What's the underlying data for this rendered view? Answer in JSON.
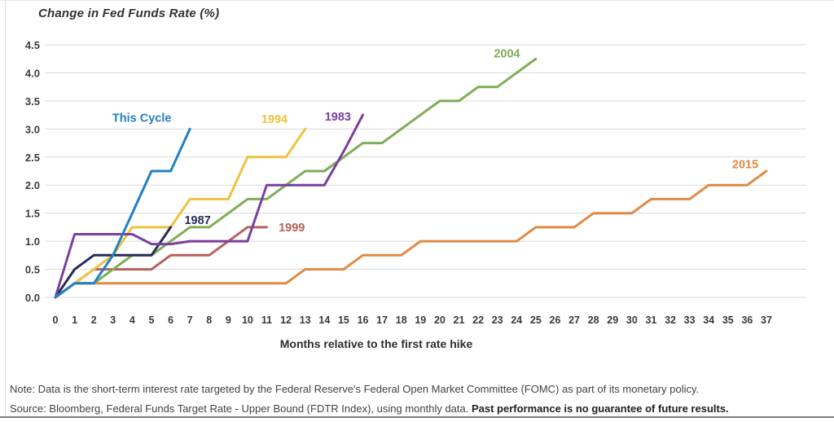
{
  "chart_data": {
    "type": "line",
    "title": "Change in Fed Funds Rate (%)",
    "xlabel": "Months relative to the first rate hike",
    "ylabel": "",
    "xlim": [
      0,
      37
    ],
    "ylim": [
      0,
      4.5
    ],
    "grid": "horizontal",
    "grid_color": "#d9d9d9",
    "axis_text_color": "#3d3d3d",
    "x_ticks": [
      0,
      1,
      2,
      3,
      4,
      5,
      6,
      7,
      8,
      9,
      10,
      11,
      12,
      13,
      14,
      15,
      16,
      17,
      18,
      19,
      20,
      21,
      22,
      23,
      24,
      25,
      26,
      27,
      28,
      29,
      30,
      31,
      32,
      33,
      34,
      35,
      36,
      37
    ],
    "y_ticks": [
      "4.5",
      "4.0",
      "3.5",
      "3.0",
      "2.5",
      "2.0",
      "1.5",
      "1.0",
      "0.5",
      "0.0"
    ],
    "series": [
      {
        "name": "1999",
        "color": "#b5625b",
        "label_pos": {
          "x": 12.3,
          "y": 1.25
        },
        "points": [
          [
            0,
            0
          ],
          [
            1,
            0.25
          ],
          [
            2,
            0.5
          ],
          [
            3,
            0.5
          ],
          [
            4,
            0.5
          ],
          [
            5,
            0.5
          ],
          [
            6,
            0.75
          ],
          [
            7,
            0.75
          ],
          [
            8,
            0.75
          ],
          [
            9,
            1.0
          ],
          [
            10,
            1.25
          ],
          [
            11,
            1.25
          ]
        ]
      },
      {
        "name": "2004",
        "color": "#7ead57",
        "label_pos": {
          "x": 23.5,
          "y": 4.35
        },
        "points": [
          [
            0,
            0
          ],
          [
            1,
            0.25
          ],
          [
            2,
            0.25
          ],
          [
            3,
            0.5
          ],
          [
            4,
            0.75
          ],
          [
            5,
            0.75
          ],
          [
            6,
            1.0
          ],
          [
            7,
            1.25
          ],
          [
            8,
            1.25
          ],
          [
            9,
            1.5
          ],
          [
            10,
            1.75
          ],
          [
            11,
            1.75
          ],
          [
            12,
            2.0
          ],
          [
            13,
            2.25
          ],
          [
            14,
            2.25
          ],
          [
            15,
            2.5
          ],
          [
            16,
            2.75
          ],
          [
            17,
            2.75
          ],
          [
            18,
            3.0
          ],
          [
            19,
            3.25
          ],
          [
            20,
            3.5
          ],
          [
            21,
            3.5
          ],
          [
            22,
            3.75
          ],
          [
            23,
            3.75
          ],
          [
            24,
            4.0
          ],
          [
            25,
            4.25
          ]
        ]
      },
      {
        "name": "1994",
        "color": "#eec33f",
        "label_pos": {
          "x": 11.4,
          "y": 3.18
        },
        "points": [
          [
            0,
            0
          ],
          [
            1,
            0.25
          ],
          [
            2,
            0.5
          ],
          [
            3,
            0.75
          ],
          [
            4,
            1.25
          ],
          [
            5,
            1.25
          ],
          [
            6,
            1.25
          ],
          [
            7,
            1.75
          ],
          [
            8,
            1.75
          ],
          [
            9,
            1.75
          ],
          [
            10,
            2.5
          ],
          [
            11,
            2.5
          ],
          [
            12,
            2.5
          ],
          [
            13,
            3.0
          ]
        ]
      },
      {
        "name": "1987",
        "color": "#262c57",
        "label_pos": {
          "x": 7.4,
          "y": 1.38
        },
        "points": [
          [
            0,
            0
          ],
          [
            1,
            0.5
          ],
          [
            2,
            0.75
          ],
          [
            3,
            0.75
          ],
          [
            4,
            0.75
          ],
          [
            5,
            0.75
          ],
          [
            6,
            1.25
          ]
        ]
      },
      {
        "name": "1983",
        "color": "#7b3f9d",
        "label_pos": {
          "x": 14.7,
          "y": 3.22
        },
        "points": [
          [
            0,
            0
          ],
          [
            1,
            1.125
          ],
          [
            2,
            1.125
          ],
          [
            3,
            1.125
          ],
          [
            4,
            1.125
          ],
          [
            5,
            0.95
          ],
          [
            6,
            0.95
          ],
          [
            7,
            1.0
          ],
          [
            8,
            1.0
          ],
          [
            9,
            1.0
          ],
          [
            10,
            1.0
          ],
          [
            11,
            2.0
          ],
          [
            12,
            2.0
          ],
          [
            13,
            2.0
          ],
          [
            14,
            2.0
          ],
          [
            15,
            2.6
          ],
          [
            16,
            3.25
          ]
        ]
      },
      {
        "name": "2015",
        "color": "#df8a45",
        "label_pos": {
          "x": 35.9,
          "y": 2.37
        },
        "points": [
          [
            0,
            0
          ],
          [
            1,
            0.25
          ],
          [
            2,
            0.25
          ],
          [
            3,
            0.25
          ],
          [
            4,
            0.25
          ],
          [
            5,
            0.25
          ],
          [
            6,
            0.25
          ],
          [
            7,
            0.25
          ],
          [
            8,
            0.25
          ],
          [
            9,
            0.25
          ],
          [
            10,
            0.25
          ],
          [
            11,
            0.25
          ],
          [
            12,
            0.25
          ],
          [
            13,
            0.5
          ],
          [
            14,
            0.5
          ],
          [
            15,
            0.5
          ],
          [
            16,
            0.75
          ],
          [
            17,
            0.75
          ],
          [
            18,
            0.75
          ],
          [
            19,
            1.0
          ],
          [
            20,
            1.0
          ],
          [
            21,
            1.0
          ],
          [
            22,
            1.0
          ],
          [
            23,
            1.0
          ],
          [
            24,
            1.0
          ],
          [
            25,
            1.25
          ],
          [
            26,
            1.25
          ],
          [
            27,
            1.25
          ],
          [
            28,
            1.5
          ],
          [
            29,
            1.5
          ],
          [
            30,
            1.5
          ],
          [
            31,
            1.75
          ],
          [
            32,
            1.75
          ],
          [
            33,
            1.75
          ],
          [
            34,
            2.0
          ],
          [
            35,
            2.0
          ],
          [
            36,
            2.0
          ],
          [
            37,
            2.25
          ]
        ]
      },
      {
        "name": "This Cycle",
        "color": "#2380c3",
        "label_pos": {
          "x": 4.5,
          "y": 3.2
        },
        "points": [
          [
            0,
            0
          ],
          [
            1,
            0.25
          ],
          [
            2,
            0.25
          ],
          [
            3,
            0.75
          ],
          [
            4,
            1.5
          ],
          [
            5,
            2.25
          ],
          [
            6,
            2.25
          ],
          [
            7,
            3.0
          ]
        ]
      }
    ]
  },
  "notes": {
    "line1": "Note: Data is the short-term interest rate targeted by the Federal Reserve's Federal Open Market Committee (FOMC) as part of its monetary policy.",
    "line2_regular": "Source: Bloomberg, Federal Funds Target Rate - Upper Bound (FDTR Index), using monthly data. ",
    "line2_bold": "Past performance is no guarantee of future results."
  }
}
